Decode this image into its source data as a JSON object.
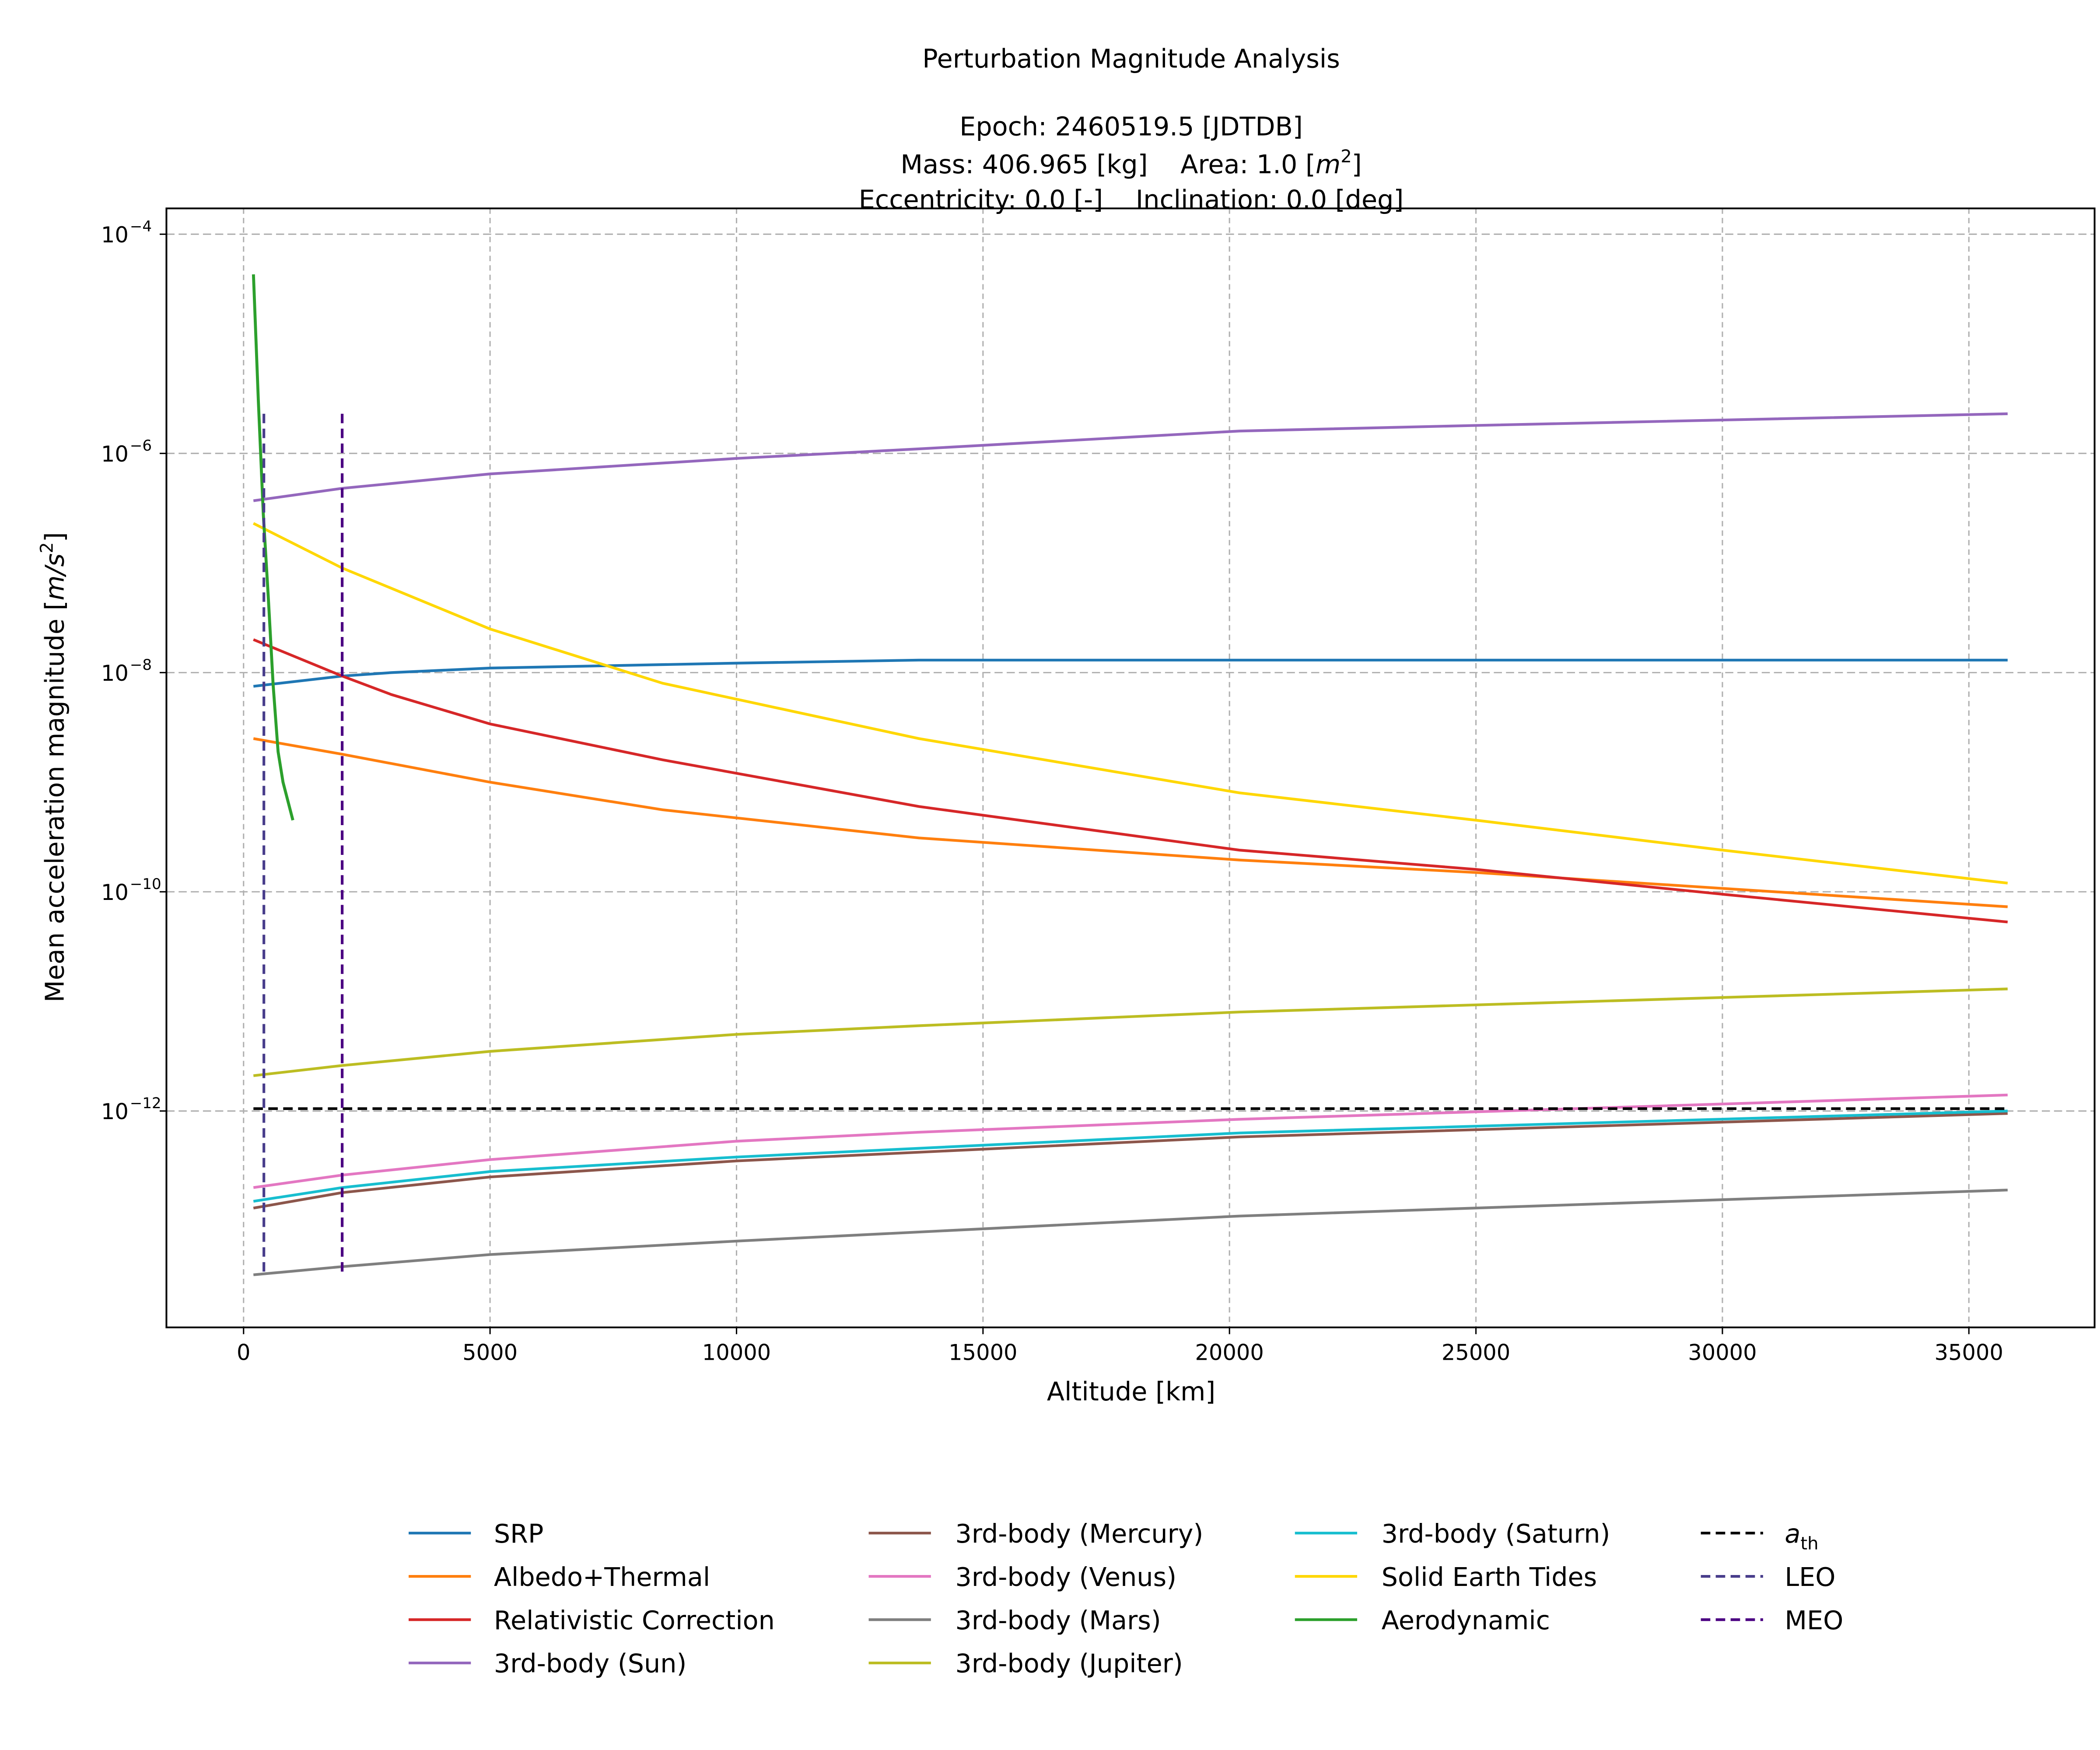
{
  "chart_data": {
    "type": "line",
    "title": "Perturbation Magnitude Analysis",
    "subtitle": {
      "epoch": "Epoch: 2460519.5 [JDTDB]",
      "mass": "Mass: 406.965 [kg]",
      "area_prefix": "Area: 1.0 [",
      "area_unit": "m",
      "area_exp": "2",
      "area_suffix": "]",
      "eccentricity": "Eccentricity: 0.0 [-]",
      "inclination": "Inclination: 0.0 [deg]"
    },
    "xlabel": "Altitude [km]",
    "ylabel_prefix": "Mean acceleration magnitude [",
    "ylabel_unit": "m/s",
    "ylabel_exp": "2",
    "ylabel_suffix": "]",
    "xlim": [
      -1565,
      37550
    ],
    "ylim": [
      1.06e-14,
      0.000172
    ],
    "yscale": "log",
    "grid": true,
    "legend_placement": "bottom-center, below plot",
    "x_ticks": [
      "0",
      "5000",
      "10000",
      "15000",
      "20000",
      "25000",
      "30000",
      "35000"
    ],
    "y_ticks": [
      {
        "base": "10",
        "exp": "−4",
        "value": 0.0001
      },
      {
        "base": "10",
        "exp": "−6",
        "value": 1e-06
      },
      {
        "base": "10",
        "exp": "−8",
        "value": 1e-08
      },
      {
        "base": "10",
        "exp": "−10",
        "value": 1e-10
      },
      {
        "base": "10",
        "exp": "−12",
        "value": 1e-12
      }
    ],
    "series": [
      {
        "name": "SRP",
        "color": "#1f77b4",
        "dash": false,
        "x": [
          200,
          2000,
          3000,
          5000,
          10000,
          13700,
          20200,
          35786
        ],
        "y": [
          7.5e-09,
          9.3e-09,
          1e-08,
          1.1e-08,
          1.22e-08,
          1.3e-08,
          1.3e-08,
          1.3e-08
        ]
      },
      {
        "name": "Albedo+Thermal",
        "color": "#ff7f0e",
        "dash": false,
        "x": [
          200,
          2000,
          5000,
          8500,
          13700,
          20200,
          25000,
          35786
        ],
        "y": [
          2.5e-09,
          1.8e-09,
          1e-09,
          5.6e-10,
          3.1e-10,
          1.95e-10,
          1.5e-10,
          7.3e-11
        ]
      },
      {
        "name": "Relativistic Correction",
        "color": "#d62728",
        "dash": false,
        "x": [
          200,
          2000,
          3000,
          5000,
          8500,
          13700,
          20200,
          25000,
          30000,
          35786
        ],
        "y": [
          2e-08,
          9.3e-09,
          6.3e-09,
          3.4e-09,
          1.6e-09,
          6e-10,
          2.4e-10,
          1.6e-10,
          9.5e-11,
          5.3e-11
        ]
      },
      {
        "name": "3rd-body (Sun)",
        "color": "#9467bd",
        "dash": false,
        "x": [
          200,
          2000,
          5000,
          10000,
          13700,
          20200,
          25000,
          35786
        ],
        "y": [
          3.7e-07,
          4.8e-07,
          6.5e-07,
          9e-07,
          1.1e-06,
          1.6e-06,
          1.8e-06,
          2.3e-06
        ]
      },
      {
        "name": "3rd-body (Mercury)",
        "color": "#8c564b",
        "dash": false,
        "x": [
          200,
          2000,
          5000,
          10000,
          20200,
          35786
        ],
        "y": [
          1.3e-13,
          1.8e-13,
          2.5e-13,
          3.5e-13,
          5.8e-13,
          9.5e-13
        ]
      },
      {
        "name": "3rd-body (Venus)",
        "color": "#e377c2",
        "dash": false,
        "x": [
          200,
          2000,
          5000,
          10000,
          13700,
          20200,
          35786
        ],
        "y": [
          2e-13,
          2.6e-13,
          3.6e-13,
          5.3e-13,
          6.4e-13,
          8.4e-13,
          1.4e-12
        ]
      },
      {
        "name": "3rd-body (Mars)",
        "color": "#7f7f7f",
        "dash": false,
        "x": [
          200,
          2000,
          5000,
          10000,
          20200,
          35786
        ],
        "y": [
          3.2e-14,
          3.8e-14,
          4.9e-14,
          6.5e-14,
          1.1e-13,
          1.9e-13
        ]
      },
      {
        "name": "3rd-body (Jupiter)",
        "color": "#bcbd22",
        "dash": false,
        "x": [
          200,
          2000,
          5000,
          10000,
          13700,
          20200,
          35786
        ],
        "y": [
          2.1e-12,
          2.6e-12,
          3.5e-12,
          5e-12,
          6e-12,
          8e-12,
          1.3e-11
        ]
      },
      {
        "name": "3rd-body (Saturn)",
        "color": "#17becf",
        "dash": false,
        "x": [
          200,
          2000,
          5000,
          10000,
          20200,
          35786
        ],
        "y": [
          1.5e-13,
          2e-13,
          2.8e-13,
          3.8e-13,
          6.3e-13,
          1e-12
        ]
      },
      {
        "name": "Solid Earth Tides",
        "color": "#ffd700",
        "dash": false,
        "x": [
          200,
          2000,
          5000,
          8500,
          13700,
          20200,
          25000,
          30000,
          35786
        ],
        "y": [
          2.3e-07,
          9e-08,
          2.5e-08,
          8e-09,
          2.5e-09,
          8e-10,
          4.5e-10,
          2.4e-10,
          1.2e-10
        ]
      },
      {
        "name": "Aerodynamic",
        "color": "#2ca02c",
        "dash": false,
        "x": [
          200,
          300,
          400,
          500,
          600,
          700,
          800,
          1000
        ],
        "y": [
          4.3e-05,
          3e-06,
          2.8e-07,
          5e-08,
          7.7e-09,
          1.9e-09,
          1e-09,
          4.5e-10
        ]
      },
      {
        "name_base": "a",
        "name_sub": "th",
        "color": "#000000",
        "dash": true,
        "x": [
          200,
          35786
        ],
        "y": [
          1.05e-12,
          1.05e-12
        ]
      },
      {
        "name": "LEO",
        "color": "#483d8b",
        "dash": true,
        "x": [
          412,
          412
        ],
        "y": [
          2.3e-06,
          3.2e-14
        ]
      },
      {
        "name": "MEO",
        "color": "#4b0082",
        "dash": true,
        "x": [
          2000,
          2000
        ],
        "y": [
          2.3e-06,
          3.2e-14
        ]
      }
    ]
  }
}
